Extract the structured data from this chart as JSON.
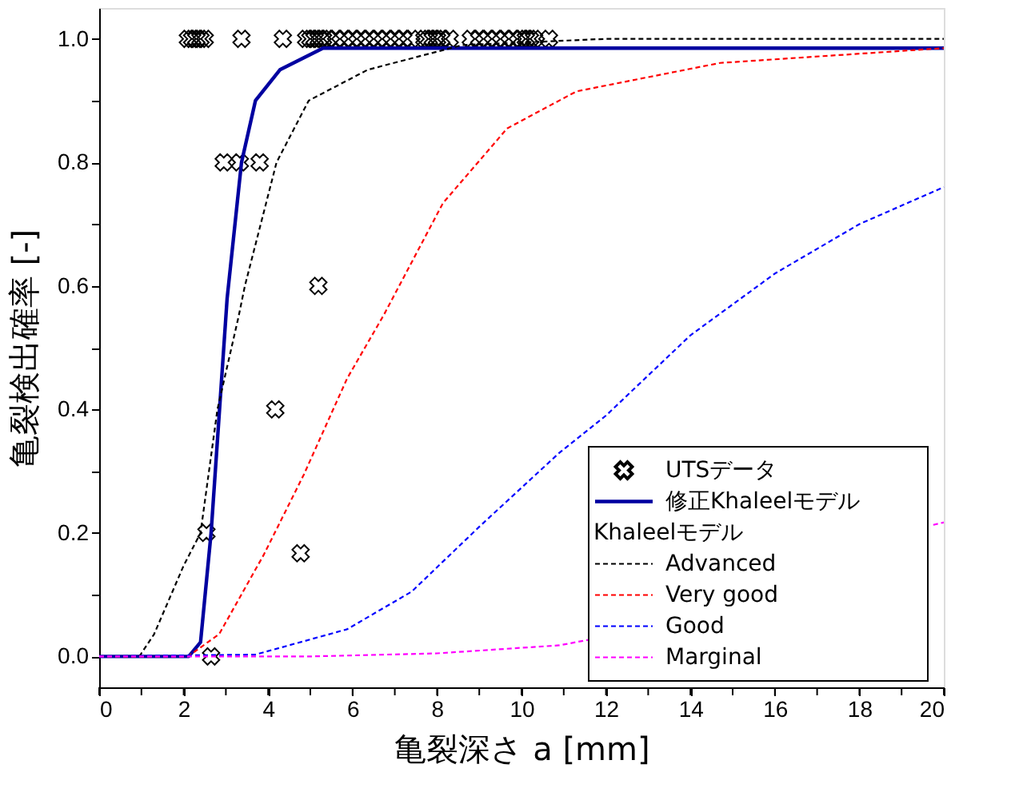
{
  "chart_data": {
    "type": "line",
    "xlabel": "亀裂深さ a [mm]",
    "ylabel": "亀裂検出確率 [-]",
    "xlim": [
      0,
      20
    ],
    "ylim": [
      -0.05,
      1.05
    ],
    "xticks": [
      0,
      {
        "value": 1,
        "label": null
      },
      2,
      {
        "value": 3,
        "label": null
      },
      4,
      {
        "value": 5,
        "label": null
      },
      6,
      {
        "value": 7,
        "label": null
      },
      8,
      {
        "value": 9,
        "label": null
      },
      10,
      {
        "value": 11,
        "label": null
      },
      12,
      {
        "value": 13,
        "label": null
      },
      14,
      {
        "value": 15,
        "label": null
      },
      16,
      {
        "value": 17,
        "label": null
      },
      18,
      {
        "value": 19,
        "label": null
      },
      20
    ],
    "yticks": [
      {
        "value": 0,
        "label": "0.0"
      },
      {
        "value": 0.1,
        "label": null
      },
      {
        "value": 0.2,
        "label": "0.2"
      },
      {
        "value": 0.3,
        "label": null
      },
      {
        "value": 0.4,
        "label": "0.4"
      },
      {
        "value": 0.5,
        "label": null
      },
      {
        "value": 0.6,
        "label": "0.6"
      },
      {
        "value": 0.7,
        "label": null
      },
      {
        "value": 0.8,
        "label": "0.8"
      },
      {
        "value": 0.9,
        "label": null
      },
      {
        "value": 1.0,
        "label": "1.0"
      }
    ],
    "grid": false,
    "legend": "bottom right",
    "annotations": [
      "Khaleelモデル"
    ],
    "series": [
      {
        "name": "UTSデータ",
        "type": "scatter",
        "marker": "cross",
        "color": "#000000",
        "x": [
          2.1,
          2.2,
          2.3,
          2.4,
          2.5,
          3.37,
          4.35,
          4.9,
          5.0,
          5.1,
          5.2,
          5.3,
          5.4,
          5.6,
          5.8,
          6.0,
          6.2,
          6.4,
          6.6,
          6.8,
          7.0,
          7.2,
          7.4,
          7.7,
          7.8,
          7.9,
          8.0,
          8.1,
          8.3,
          8.8,
          9.0,
          9.2,
          9.4,
          9.6,
          9.8,
          10.0,
          10.1,
          10.2,
          10.3,
          10.65,
          2.95,
          3.33,
          3.8,
          5.19,
          4.17,
          2.54,
          4.77,
          2.65
        ],
        "values": [
          1,
          1,
          1,
          1,
          1,
          1,
          1,
          1,
          1,
          1,
          1,
          1,
          1,
          1,
          1,
          1,
          1,
          1,
          1,
          1,
          1,
          1,
          1,
          1,
          1,
          1,
          1,
          1,
          1,
          1,
          1,
          1,
          1,
          1,
          1,
          1,
          1,
          1,
          1,
          1,
          0.8,
          0.8,
          0.8,
          0.6,
          0.4,
          0.2,
          0.167,
          0
        ]
      },
      {
        "name": "修正Khaleelモデル",
        "line_style": "solid",
        "color": "#0000a0",
        "x": [
          0,
          2.12,
          2.4,
          2.65,
          2.85,
          3.03,
          3.37,
          3.7,
          4.28,
          5.3,
          8,
          12,
          16,
          20
        ],
        "values": [
          0,
          0,
          0.023,
          0.2,
          0.4,
          0.58,
          0.8,
          0.9,
          0.95,
          0.985,
          0.985,
          0.985,
          0.985,
          0.985
        ]
      },
      {
        "name": "Advanced",
        "line_style": "dashed",
        "color": "#000000",
        "x": [
          0,
          0.95,
          1.3,
          2.0,
          2.4,
          2.8,
          3.3,
          3.45,
          4.2,
          4.96,
          6.36,
          8.6,
          12,
          16,
          20
        ],
        "values": [
          0,
          0,
          0.036,
          0.147,
          0.2,
          0.4,
          0.55,
          0.6,
          0.8,
          0.9,
          0.95,
          0.99,
          1.0,
          1.0,
          1.0
        ]
      },
      {
        "name": "Very good",
        "line_style": "dashed",
        "color": "#ff0000",
        "x": [
          0,
          2.1,
          2.84,
          3.9,
          4.85,
          5.87,
          6.74,
          8.14,
          9.66,
          11.3,
          14.7,
          20
        ],
        "values": [
          0,
          0,
          0.036,
          0.165,
          0.295,
          0.45,
          0.553,
          0.734,
          0.855,
          0.915,
          0.961,
          0.985
        ]
      },
      {
        "name": "Good",
        "line_style": "dashed",
        "color": "#0000ff",
        "x": [
          0,
          3.7,
          5.87,
          7.4,
          9,
          10.9,
          12,
          14,
          16,
          18,
          20
        ],
        "values": [
          0,
          0.003,
          0.044,
          0.105,
          0.21,
          0.33,
          0.39,
          0.52,
          0.62,
          0.7,
          0.76
        ]
      },
      {
        "name": "Marginal",
        "line_style": "dashed",
        "color": "#ff00ff",
        "x": [
          0,
          5,
          8,
          10.9,
          11.67,
          15,
          19.75,
          20
        ],
        "values": [
          0,
          0,
          0.005,
          0.018,
          0.028,
          null,
          0.213,
          0.217
        ]
      }
    ]
  }
}
